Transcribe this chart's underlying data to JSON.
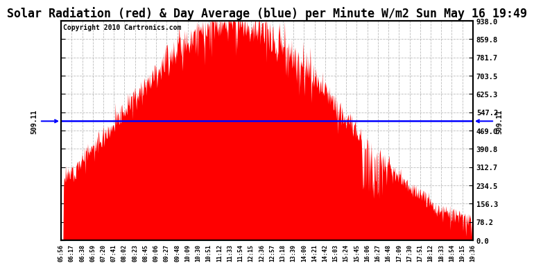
{
  "title": "Solar Radiation (red) & Day Average (blue) per Minute W/m2 Sun May 16 19:49",
  "copyright": "Copyright 2010 Cartronics.com",
  "y_max": 938.0,
  "y_min": 0.0,
  "y_ticks": [
    938.0,
    859.8,
    781.7,
    703.5,
    625.3,
    547.2,
    469.0,
    390.8,
    312.7,
    234.5,
    156.3,
    78.2,
    0.0
  ],
  "avg_value": 509.11,
  "avg_label": "509.11",
  "fill_color": "#FF0000",
  "avg_line_color": "#0000FF",
  "background_color": "#FFFFFF",
  "grid_color": "#AAAAAA",
  "title_fontsize": 12,
  "copyright_fontsize": 7,
  "x_labels": [
    "05:56",
    "06:17",
    "06:38",
    "06:59",
    "07:20",
    "07:41",
    "08:02",
    "08:23",
    "08:45",
    "09:06",
    "09:27",
    "09:48",
    "10:09",
    "10:30",
    "10:51",
    "11:12",
    "11:33",
    "11:54",
    "12:15",
    "12:36",
    "12:57",
    "13:18",
    "13:39",
    "14:00",
    "14:21",
    "14:42",
    "15:03",
    "15:24",
    "15:45",
    "16:06",
    "16:27",
    "16:48",
    "17:09",
    "17:30",
    "17:51",
    "18:12",
    "18:33",
    "18:54",
    "19:15",
    "19:36"
  ],
  "peak_minute": 340,
  "sigma": 210,
  "n_points": 821,
  "seed": 12
}
